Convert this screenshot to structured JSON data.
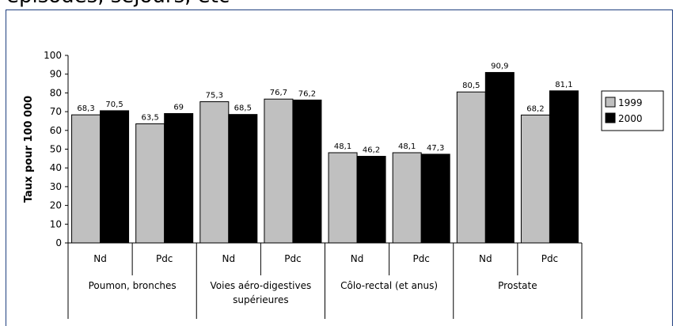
{
  "header": {
    "partial_title": "épisodes, séjours, etc"
  },
  "chart_data": {
    "type": "bar",
    "ylabel": "Taux pour 100 000",
    "ylim": [
      0,
      100
    ],
    "yticks": [
      "0",
      "10",
      "20",
      "30",
      "40",
      "50",
      "60",
      "70",
      "80",
      "90",
      "100"
    ],
    "groups": [
      {
        "label": "Poumon, bronches",
        "label_lines": [
          "Poumon, bronches"
        ],
        "subs": [
          "Nd",
          "Pdc"
        ]
      },
      {
        "label": "Voies aéro-digestives supérieures",
        "label_lines": [
          "Voies aéro-digestives",
          "supérieures"
        ],
        "subs": [
          "Nd",
          "Pdc"
        ]
      },
      {
        "label": "Côlo-rectal (et anus)",
        "label_lines": [
          "Côlo-rectal (et anus)"
        ],
        "subs": [
          "Nd",
          "Pdc"
        ]
      },
      {
        "label": "Prostate",
        "label_lines": [
          "Prostate"
        ],
        "subs": [
          "Nd",
          "Pdc"
        ]
      }
    ],
    "categories": [
      "Nd",
      "Pdc",
      "Nd",
      "Pdc",
      "Nd",
      "Pdc",
      "Nd",
      "Pdc"
    ],
    "series": [
      {
        "name": "1999",
        "color": "#c0c0c0",
        "values": [
          68.3,
          63.5,
          75.3,
          76.7,
          48.1,
          48.1,
          80.5,
          68.2
        ],
        "labels": [
          "68,3",
          "63,5",
          "75,3",
          "76,7",
          "48,1",
          "48,1",
          "80,5",
          "68,2"
        ]
      },
      {
        "name": "2000",
        "color": "#000000",
        "values": [
          70.5,
          69,
          68.5,
          76.2,
          46.2,
          47.3,
          90.9,
          81.1
        ],
        "labels": [
          "70,5",
          "69",
          "68,5",
          "76,2",
          "46,2",
          "47,3",
          "90,9",
          "81,1"
        ]
      }
    ],
    "legend_position": "right",
    "grid": false
  }
}
